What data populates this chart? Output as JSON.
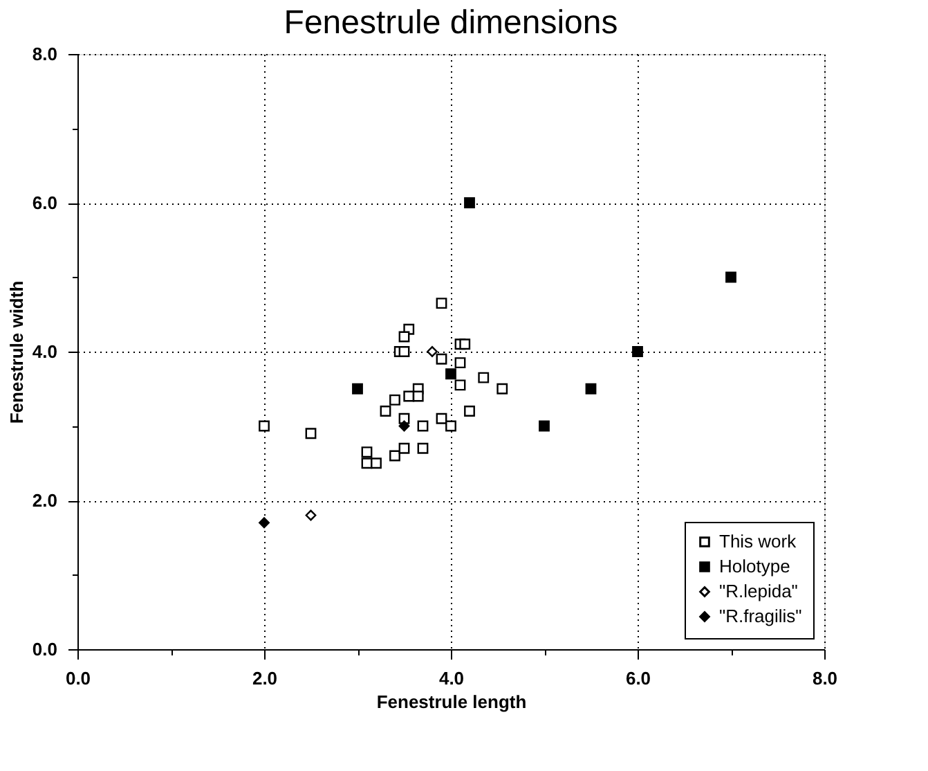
{
  "chart_data": {
    "type": "scatter",
    "title": "Fenestrule dimensions",
    "xlabel": "Fenestrule length",
    "ylabel": "Fenestrule width",
    "xlim": [
      0,
      8
    ],
    "ylim": [
      0,
      8
    ],
    "xticks": [
      {
        "value": 0,
        "label": "0.0"
      },
      {
        "value": 1,
        "label": null
      },
      {
        "value": 2,
        "label": "2.0"
      },
      {
        "value": 3,
        "label": null
      },
      {
        "value": 4,
        "label": "4.0"
      },
      {
        "value": 5,
        "label": null
      },
      {
        "value": 6,
        "label": "6.0"
      },
      {
        "value": 7,
        "label": null
      },
      {
        "value": 8,
        "label": "8.0"
      }
    ],
    "yticks": [
      {
        "value": 0,
        "label": "0.0"
      },
      {
        "value": 1,
        "label": null
      },
      {
        "value": 2,
        "label": "2.0"
      },
      {
        "value": 3,
        "label": null
      },
      {
        "value": 4,
        "label": "4.0"
      },
      {
        "value": 5,
        "label": null
      },
      {
        "value": 6,
        "label": "6.0"
      },
      {
        "value": 7,
        "label": null
      },
      {
        "value": 8,
        "label": "8.0"
      }
    ],
    "grid": true,
    "legend": "bottom right",
    "series": [
      {
        "name": "This work",
        "color": "#ffffff",
        "marker": "square",
        "x": [
          3.9,
          3.55,
          3.5,
          3.45,
          3.5,
          3.9,
          4.1,
          4.15,
          4.1,
          4.1,
          4.35,
          4.55,
          3.65,
          3.55,
          3.65,
          3.4,
          3.3,
          3.5,
          4.2,
          3.9,
          4.0,
          3.7,
          2.0,
          2.5,
          3.1,
          3.1,
          3.2,
          3.4,
          3.5,
          3.7
        ],
        "values": [
          4.65,
          4.3,
          4.2,
          4.0,
          4.0,
          3.9,
          4.1,
          4.1,
          3.85,
          3.55,
          3.65,
          3.5,
          3.5,
          3.4,
          3.4,
          3.35,
          3.2,
          3.1,
          3.2,
          3.1,
          3.0,
          3.0,
          3.0,
          2.9,
          2.65,
          2.5,
          2.5,
          2.6,
          2.7,
          2.7
        ]
      },
      {
        "name": "Holotype",
        "color": "#000000",
        "marker": "square",
        "x": [
          3.0,
          4.0,
          5.0,
          4.2,
          5.5,
          6.0,
          7.0
        ],
        "values": [
          3.5,
          3.7,
          3.0,
          6.0,
          3.5,
          4.0,
          5.0
        ]
      },
      {
        "name": "\"R.lepida\"",
        "color": "#ffffff",
        "marker": "diamond",
        "x": [
          3.8,
          2.5
        ],
        "values": [
          4.0,
          1.8
        ]
      },
      {
        "name": "\"R.fragilis\"",
        "color": "#000000",
        "marker": "diamond",
        "x": [
          2.0,
          3.5
        ],
        "values": [
          1.7,
          3.0
        ]
      }
    ]
  }
}
